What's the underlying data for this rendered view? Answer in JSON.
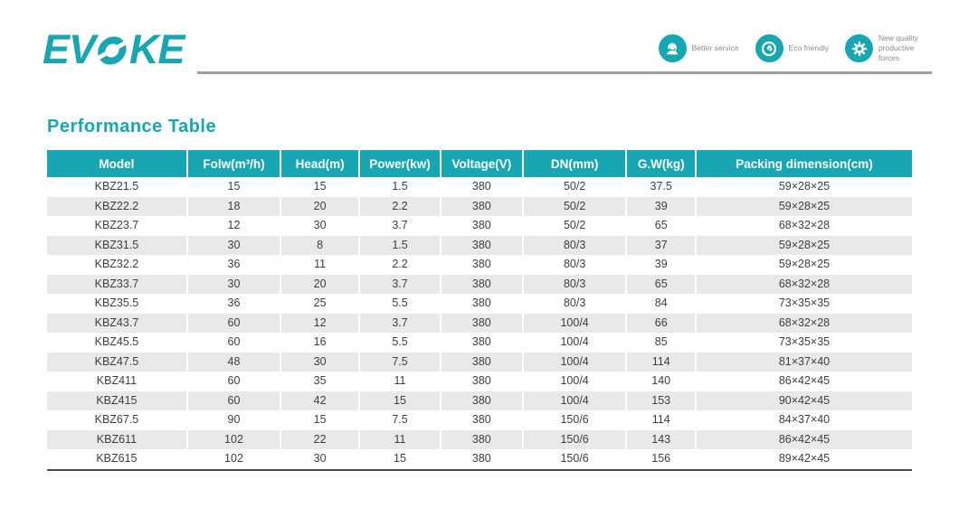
{
  "header": {
    "logo_left": "EV",
    "logo_right": "KE",
    "logo_full": "EVOKE",
    "badges": [
      {
        "icon": "headset-icon",
        "label": "Better service"
      },
      {
        "icon": "leaf-icon",
        "label": "Eco friendly"
      },
      {
        "icon": "gear-icon",
        "label": "New quality productive forces"
      }
    ]
  },
  "section_title": "Performance Table",
  "table": {
    "columns": [
      "Model",
      "Folw(m³/h)",
      "Head(m)",
      "Power(kw)",
      "Voltage(V)",
      "DN(mm)",
      "G.W(kg)",
      "Packing dimension(cm)"
    ],
    "rows": [
      [
        "KBZ21.5",
        "15",
        "15",
        "1.5",
        "380",
        "50/2",
        "37.5",
        "59×28×25"
      ],
      [
        "KBZ22.2",
        "18",
        "20",
        "2.2",
        "380",
        "50/2",
        "39",
        "59×28×25"
      ],
      [
        "KBZ23.7",
        "12",
        "30",
        "3.7",
        "380",
        "50/2",
        "65",
        "68×32×28"
      ],
      [
        "KBZ31.5",
        "30",
        "8",
        "1.5",
        "380",
        "80/3",
        "37",
        "59×28×25"
      ],
      [
        "KBZ32.2",
        "36",
        "11",
        "2.2",
        "380",
        "80/3",
        "39",
        "59×28×25"
      ],
      [
        "KBZ33.7",
        "30",
        "20",
        "3.7",
        "380",
        "80/3",
        "65",
        "68×32×28"
      ],
      [
        "KBZ35.5",
        "36",
        "25",
        "5.5",
        "380",
        "80/3",
        "84",
        "73×35×35"
      ],
      [
        "KBZ43.7",
        "60",
        "12",
        "3.7",
        "380",
        "100/4",
        "66",
        "68×32×28"
      ],
      [
        "KBZ45.5",
        "60",
        "16",
        "5.5",
        "380",
        "100/4",
        "85",
        "73×35×35"
      ],
      [
        "KBZ47.5",
        "48",
        "30",
        "7.5",
        "380",
        "100/4",
        "114",
        "81×37×40"
      ],
      [
        "KBZ411",
        "60",
        "35",
        "11",
        "380",
        "100/4",
        "140",
        "86×42×45"
      ],
      [
        "KBZ415",
        "60",
        "42",
        "15",
        "380",
        "100/4",
        "153",
        "90×42×45"
      ],
      [
        "KBZ67.5",
        "90",
        "15",
        "7.5",
        "380",
        "150/6",
        "114",
        "84×37×40"
      ],
      [
        "KBZ611",
        "102",
        "22",
        "11",
        "380",
        "150/6",
        "143",
        "86×42×45"
      ],
      [
        "KBZ615",
        "102",
        "30",
        "15",
        "380",
        "150/6",
        "156",
        "89×42×45"
      ]
    ]
  },
  "colors": {
    "accent": "#17a6b2",
    "stripe": "#e9e9e9",
    "divider": "#9e9e9e",
    "body_text": "#3e3e3e"
  }
}
